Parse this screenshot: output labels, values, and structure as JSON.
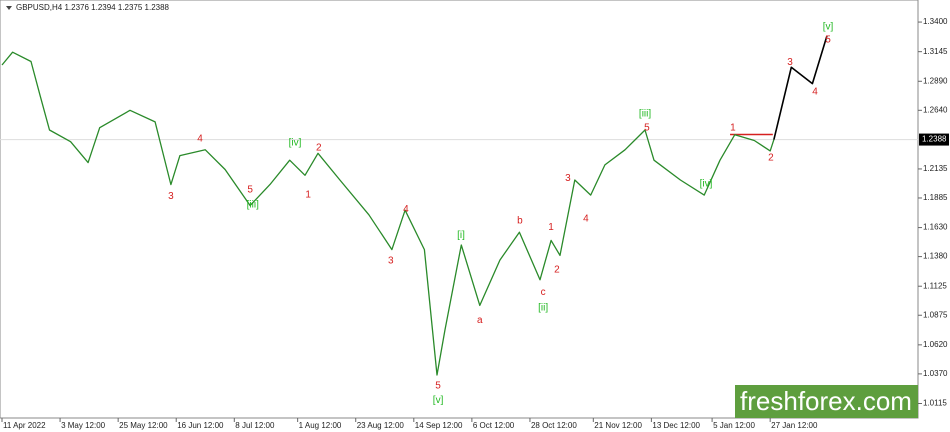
{
  "chart_data": {
    "type": "line",
    "title": "GBPUSD,H4  1.2376 1.2394 1.2375 1.2388",
    "xlim": [
      0,
      347
    ],
    "ylim": [
      0.999,
      1.359
    ],
    "xticks": [
      {
        "value": 0,
        "label": "11 Apr 2022"
      },
      {
        "value": 22,
        "label": "3 May 12:00"
      },
      {
        "value": 44,
        "label": "25 May 12:00"
      },
      {
        "value": 66,
        "label": "16 Jun 12:00"
      },
      {
        "value": 88,
        "label": "8 Jul 12:00"
      },
      {
        "value": 112,
        "label": "1 Aug 12:00"
      },
      {
        "value": 134,
        "label": "23 Aug 12:00"
      },
      {
        "value": 156,
        "label": "14 Sep 12:00"
      },
      {
        "value": 178,
        "label": "6 Oct 12:00"
      },
      {
        "value": 200,
        "label": "28 Oct 12:00"
      },
      {
        "value": 224,
        "label": "21 Nov 12:00"
      },
      {
        "value": 246,
        "label": "13 Dec 12:00"
      },
      {
        "value": 269,
        "label": "5 Jan 12:00"
      },
      {
        "value": 291,
        "label": "27 Jan 12:00"
      }
    ],
    "yticks": [
      {
        "value": 1.34,
        "label": "1.3400"
      },
      {
        "value": 1.3145,
        "label": "1.3145"
      },
      {
        "value": 1.289,
        "label": "1.2890"
      },
      {
        "value": 1.264,
        "label": "1.2640"
      },
      {
        "value": 1.2135,
        "label": "1.2135"
      },
      {
        "value": 1.1885,
        "label": "1.1885"
      },
      {
        "value": 1.163,
        "label": "1.1630"
      },
      {
        "value": 1.138,
        "label": "1.1380"
      },
      {
        "value": 1.1125,
        "label": "1.1125"
      },
      {
        "value": 1.0875,
        "label": "1.0875"
      },
      {
        "value": 1.062,
        "label": "1.0620"
      },
      {
        "value": 1.037,
        "label": "1.0370"
      },
      {
        "value": 1.0115,
        "label": "1.0115"
      }
    ],
    "current_price": {
      "value": 1.2388,
      "label": "1.2388"
    },
    "series": [
      {
        "name": "GBPUSD",
        "color": "#2a8a2a",
        "x": [
          0,
          4,
          11,
          14.4,
          18,
          26,
          32.6,
          37,
          48.5,
          58,
          64,
          67.4,
          77,
          84.5,
          94,
          101.5,
          109,
          114.8,
          119.7,
          128,
          139,
          147.7,
          152.7,
          160,
          164.8,
          167.8,
          174,
          181,
          188.6,
          196,
          203.8,
          208,
          211.4,
          217,
          223,
          228.4,
          236,
          243.6,
          247,
          257,
          266,
          272,
          277.6,
          285,
          291,
          292.4
        ],
        "values": [
          1.303,
          1.314,
          1.306,
          1.277,
          1.247,
          1.237,
          1.219,
          1.249,
          1.264,
          1.254,
          1.2,
          1.225,
          1.23,
          1.213,
          1.182,
          1.2,
          1.221,
          1.208,
          1.227,
          1.204,
          1.174,
          1.144,
          1.178,
          1.144,
          1.036,
          1.075,
          1.148,
          1.096,
          1.135,
          1.159,
          1.118,
          1.152,
          1.139,
          1.204,
          1.191,
          1.217,
          1.23,
          1.247,
          1.221,
          1.204,
          1.191,
          1.221,
          1.243,
          1.238,
          1.229,
          1.2388
        ]
      },
      {
        "name": "Projection",
        "color": "#000000",
        "x": [
          292.4,
          299,
          307,
          312.5
        ],
        "values": [
          1.2388,
          1.301,
          1.287,
          1.328
        ]
      }
    ],
    "resistance": {
      "value": 1.2432,
      "x": [
        275.8,
        292
      ],
      "color": "#d62020"
    },
    "annotations": [
      {
        "text": "[v]",
        "x": 312.9,
        "y": 1.3357,
        "color": "#22b822"
      },
      {
        "text": "5",
        "x": 312.9,
        "y": 1.3245,
        "color": "#d62020"
      },
      {
        "text": "3",
        "x": 298.5,
        "y": 1.3055,
        "color": "#d62020"
      },
      {
        "text": "4",
        "x": 308,
        "y": 1.2797,
        "color": "#d62020"
      },
      {
        "text": "1",
        "x": 276.9,
        "y": 1.2487,
        "color": "#d62020"
      },
      {
        "text": "2",
        "x": 291.3,
        "y": 1.2229,
        "color": "#d62020"
      },
      {
        "text": "[iii]",
        "x": 243.6,
        "y": 1.2608,
        "color": "#22b822"
      },
      {
        "text": "5",
        "x": 244.3,
        "y": 1.2487,
        "color": "#d62020"
      },
      {
        "text": "[iv]",
        "x": 266.7,
        "y": 1.2005,
        "color": "#22b822"
      },
      {
        "text": "3",
        "x": 214.4,
        "y": 1.2056,
        "color": "#d62020"
      },
      {
        "text": "4",
        "x": 221.2,
        "y": 1.1703,
        "color": "#d62020"
      },
      {
        "text": "b",
        "x": 196.2,
        "y": 1.1686,
        "color": "#d62020"
      },
      {
        "text": "1",
        "x": 208,
        "y": 1.1634,
        "color": "#d62020"
      },
      {
        "text": "2",
        "x": 210.2,
        "y": 1.1264,
        "color": "#d62020"
      },
      {
        "text": "c",
        "x": 205,
        "y": 1.1074,
        "color": "#d62020"
      },
      {
        "text": "[ii]",
        "x": 205,
        "y": 1.0937,
        "color": "#22b822"
      },
      {
        "text": "[i]",
        "x": 173.9,
        "y": 1.1565,
        "color": "#22b822"
      },
      {
        "text": "a",
        "x": 181,
        "y": 1.0833,
        "color": "#d62020"
      },
      {
        "text": "5",
        "x": 165.2,
        "y": 1.0265,
        "color": "#d62020"
      },
      {
        "text": "[v]",
        "x": 165.2,
        "y": 1.0144,
        "color": "#22b822"
      },
      {
        "text": "4",
        "x": 153,
        "y": 1.1789,
        "color": "#d62020"
      },
      {
        "text": "3",
        "x": 147.3,
        "y": 1.1342,
        "color": "#d62020"
      },
      {
        "text": "2",
        "x": 120,
        "y": 1.2315,
        "color": "#d62020"
      },
      {
        "text": "1",
        "x": 116,
        "y": 1.191,
        "color": "#d62020"
      },
      {
        "text": "[iv]",
        "x": 111,
        "y": 1.2358,
        "color": "#22b822"
      },
      {
        "text": "4",
        "x": 75,
        "y": 1.2392,
        "color": "#d62020"
      },
      {
        "text": "3",
        "x": 64,
        "y": 1.19,
        "color": "#d62020"
      },
      {
        "text": "5",
        "x": 94,
        "y": 1.1953,
        "color": "#d62020"
      },
      {
        "text": "[iii]",
        "x": 95,
        "y": 1.1824,
        "color": "#22b822"
      }
    ],
    "watermark": {
      "text": "freshforex.com",
      "color": "#5e9e3e"
    }
  }
}
